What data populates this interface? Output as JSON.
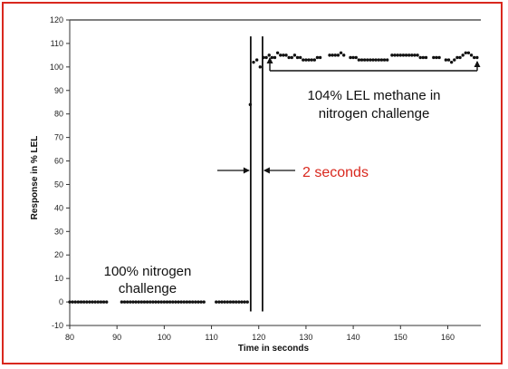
{
  "chart_data": {
    "type": "scatter",
    "title": "",
    "xlabel": "Time in seconds",
    "ylabel": "Response in % LEL",
    "xlim": [
      80,
      167
    ],
    "ylim": [
      -10,
      120
    ],
    "xticks": [
      "80",
      "90",
      "100",
      "110",
      "120",
      "130",
      "140",
      "150",
      "160"
    ],
    "yticks": [
      "-10",
      "0",
      "10",
      "20",
      "30",
      "40",
      "50",
      "60",
      "70",
      "80",
      "90",
      "100",
      "110",
      "120"
    ],
    "grid": false,
    "series": [
      {
        "points": [
          [
            80.0,
            0
          ],
          [
            80.6,
            0
          ],
          [
            81.2,
            0
          ],
          [
            81.8,
            0
          ],
          [
            82.4,
            0
          ],
          [
            83.0,
            0
          ],
          [
            83.6,
            0
          ],
          [
            84.2,
            0
          ],
          [
            84.8,
            0
          ],
          [
            85.4,
            0
          ],
          [
            86.0,
            0
          ],
          [
            86.6,
            0
          ],
          [
            87.2,
            0
          ],
          [
            87.8,
            0
          ],
          [
            91.0,
            0
          ],
          [
            91.6,
            0
          ],
          [
            92.2,
            0
          ],
          [
            92.8,
            0
          ],
          [
            93.4,
            0
          ],
          [
            94.0,
            0
          ],
          [
            94.6,
            0
          ],
          [
            95.2,
            0
          ],
          [
            95.8,
            0
          ],
          [
            96.4,
            0
          ],
          [
            97.0,
            0
          ],
          [
            97.6,
            0
          ],
          [
            98.2,
            0
          ],
          [
            98.8,
            0
          ],
          [
            99.4,
            0
          ],
          [
            100.0,
            0
          ],
          [
            100.6,
            0
          ],
          [
            101.2,
            0
          ],
          [
            101.8,
            0
          ],
          [
            102.4,
            0
          ],
          [
            103.0,
            0
          ],
          [
            103.6,
            0
          ],
          [
            104.2,
            0
          ],
          [
            104.8,
            0
          ],
          [
            105.4,
            0
          ],
          [
            106.0,
            0
          ],
          [
            106.6,
            0
          ],
          [
            107.2,
            0
          ],
          [
            107.8,
            0
          ],
          [
            108.4,
            0
          ],
          [
            111.0,
            0
          ],
          [
            111.6,
            0
          ],
          [
            112.2,
            0
          ],
          [
            112.8,
            0
          ],
          [
            113.4,
            0
          ],
          [
            114.0,
            0
          ],
          [
            114.6,
            0
          ],
          [
            115.2,
            0
          ],
          [
            115.8,
            0
          ],
          [
            116.4,
            0
          ],
          [
            117.0,
            0
          ],
          [
            117.6,
            0
          ],
          [
            118.2,
            84
          ],
          [
            118.9,
            102
          ],
          [
            119.6,
            103
          ],
          [
            120.3,
            100
          ],
          [
            121.0,
            104
          ],
          [
            121.6,
            104
          ],
          [
            122.2,
            105
          ],
          [
            122.8,
            104
          ],
          [
            123.4,
            104
          ],
          [
            124.0,
            106
          ],
          [
            124.6,
            105
          ],
          [
            125.2,
            105
          ],
          [
            125.8,
            105
          ],
          [
            126.4,
            104
          ],
          [
            127.0,
            104
          ],
          [
            127.6,
            105
          ],
          [
            128.2,
            104
          ],
          [
            128.8,
            104
          ],
          [
            129.4,
            103
          ],
          [
            130.0,
            103
          ],
          [
            130.6,
            103
          ],
          [
            131.2,
            103
          ],
          [
            131.8,
            103
          ],
          [
            132.4,
            104
          ],
          [
            133.0,
            104
          ],
          [
            135.0,
            105
          ],
          [
            135.6,
            105
          ],
          [
            136.2,
            105
          ],
          [
            136.8,
            105
          ],
          [
            137.4,
            106
          ],
          [
            138.0,
            105
          ],
          [
            139.4,
            104
          ],
          [
            140.0,
            104
          ],
          [
            140.6,
            104
          ],
          [
            141.2,
            103
          ],
          [
            141.8,
            103
          ],
          [
            142.4,
            103
          ],
          [
            143.0,
            103
          ],
          [
            143.6,
            103
          ],
          [
            144.2,
            103
          ],
          [
            144.8,
            103
          ],
          [
            145.4,
            103
          ],
          [
            146.0,
            103
          ],
          [
            146.6,
            103
          ],
          [
            147.2,
            103
          ],
          [
            148.2,
            105
          ],
          [
            148.8,
            105
          ],
          [
            149.4,
            105
          ],
          [
            150.0,
            105
          ],
          [
            150.6,
            105
          ],
          [
            151.2,
            105
          ],
          [
            151.8,
            105
          ],
          [
            152.4,
            105
          ],
          [
            153.0,
            105
          ],
          [
            153.6,
            105
          ],
          [
            154.2,
            104
          ],
          [
            154.8,
            104
          ],
          [
            155.4,
            104
          ],
          [
            157.0,
            104
          ],
          [
            157.6,
            104
          ],
          [
            158.2,
            104
          ],
          [
            159.6,
            103
          ],
          [
            160.2,
            103
          ],
          [
            160.8,
            102
          ],
          [
            161.4,
            103
          ],
          [
            162.0,
            104
          ],
          [
            162.6,
            104
          ],
          [
            163.2,
            105
          ],
          [
            163.8,
            106
          ],
          [
            164.4,
            106
          ],
          [
            165.0,
            105
          ],
          [
            165.6,
            104
          ],
          [
            166.2,
            104
          ]
        ]
      }
    ],
    "marker_lines_x": [
      118.3,
      120.8
    ],
    "annotations": {
      "nitrogen": [
        "100% nitrogen",
        "challenge"
      ],
      "methane": [
        "104% LEL methane in",
        "nitrogen challenge"
      ],
      "interval": "2 seconds"
    },
    "colors": {
      "frame": "#d9281e",
      "interval_text": "#d9281e",
      "data": "#111111"
    }
  }
}
